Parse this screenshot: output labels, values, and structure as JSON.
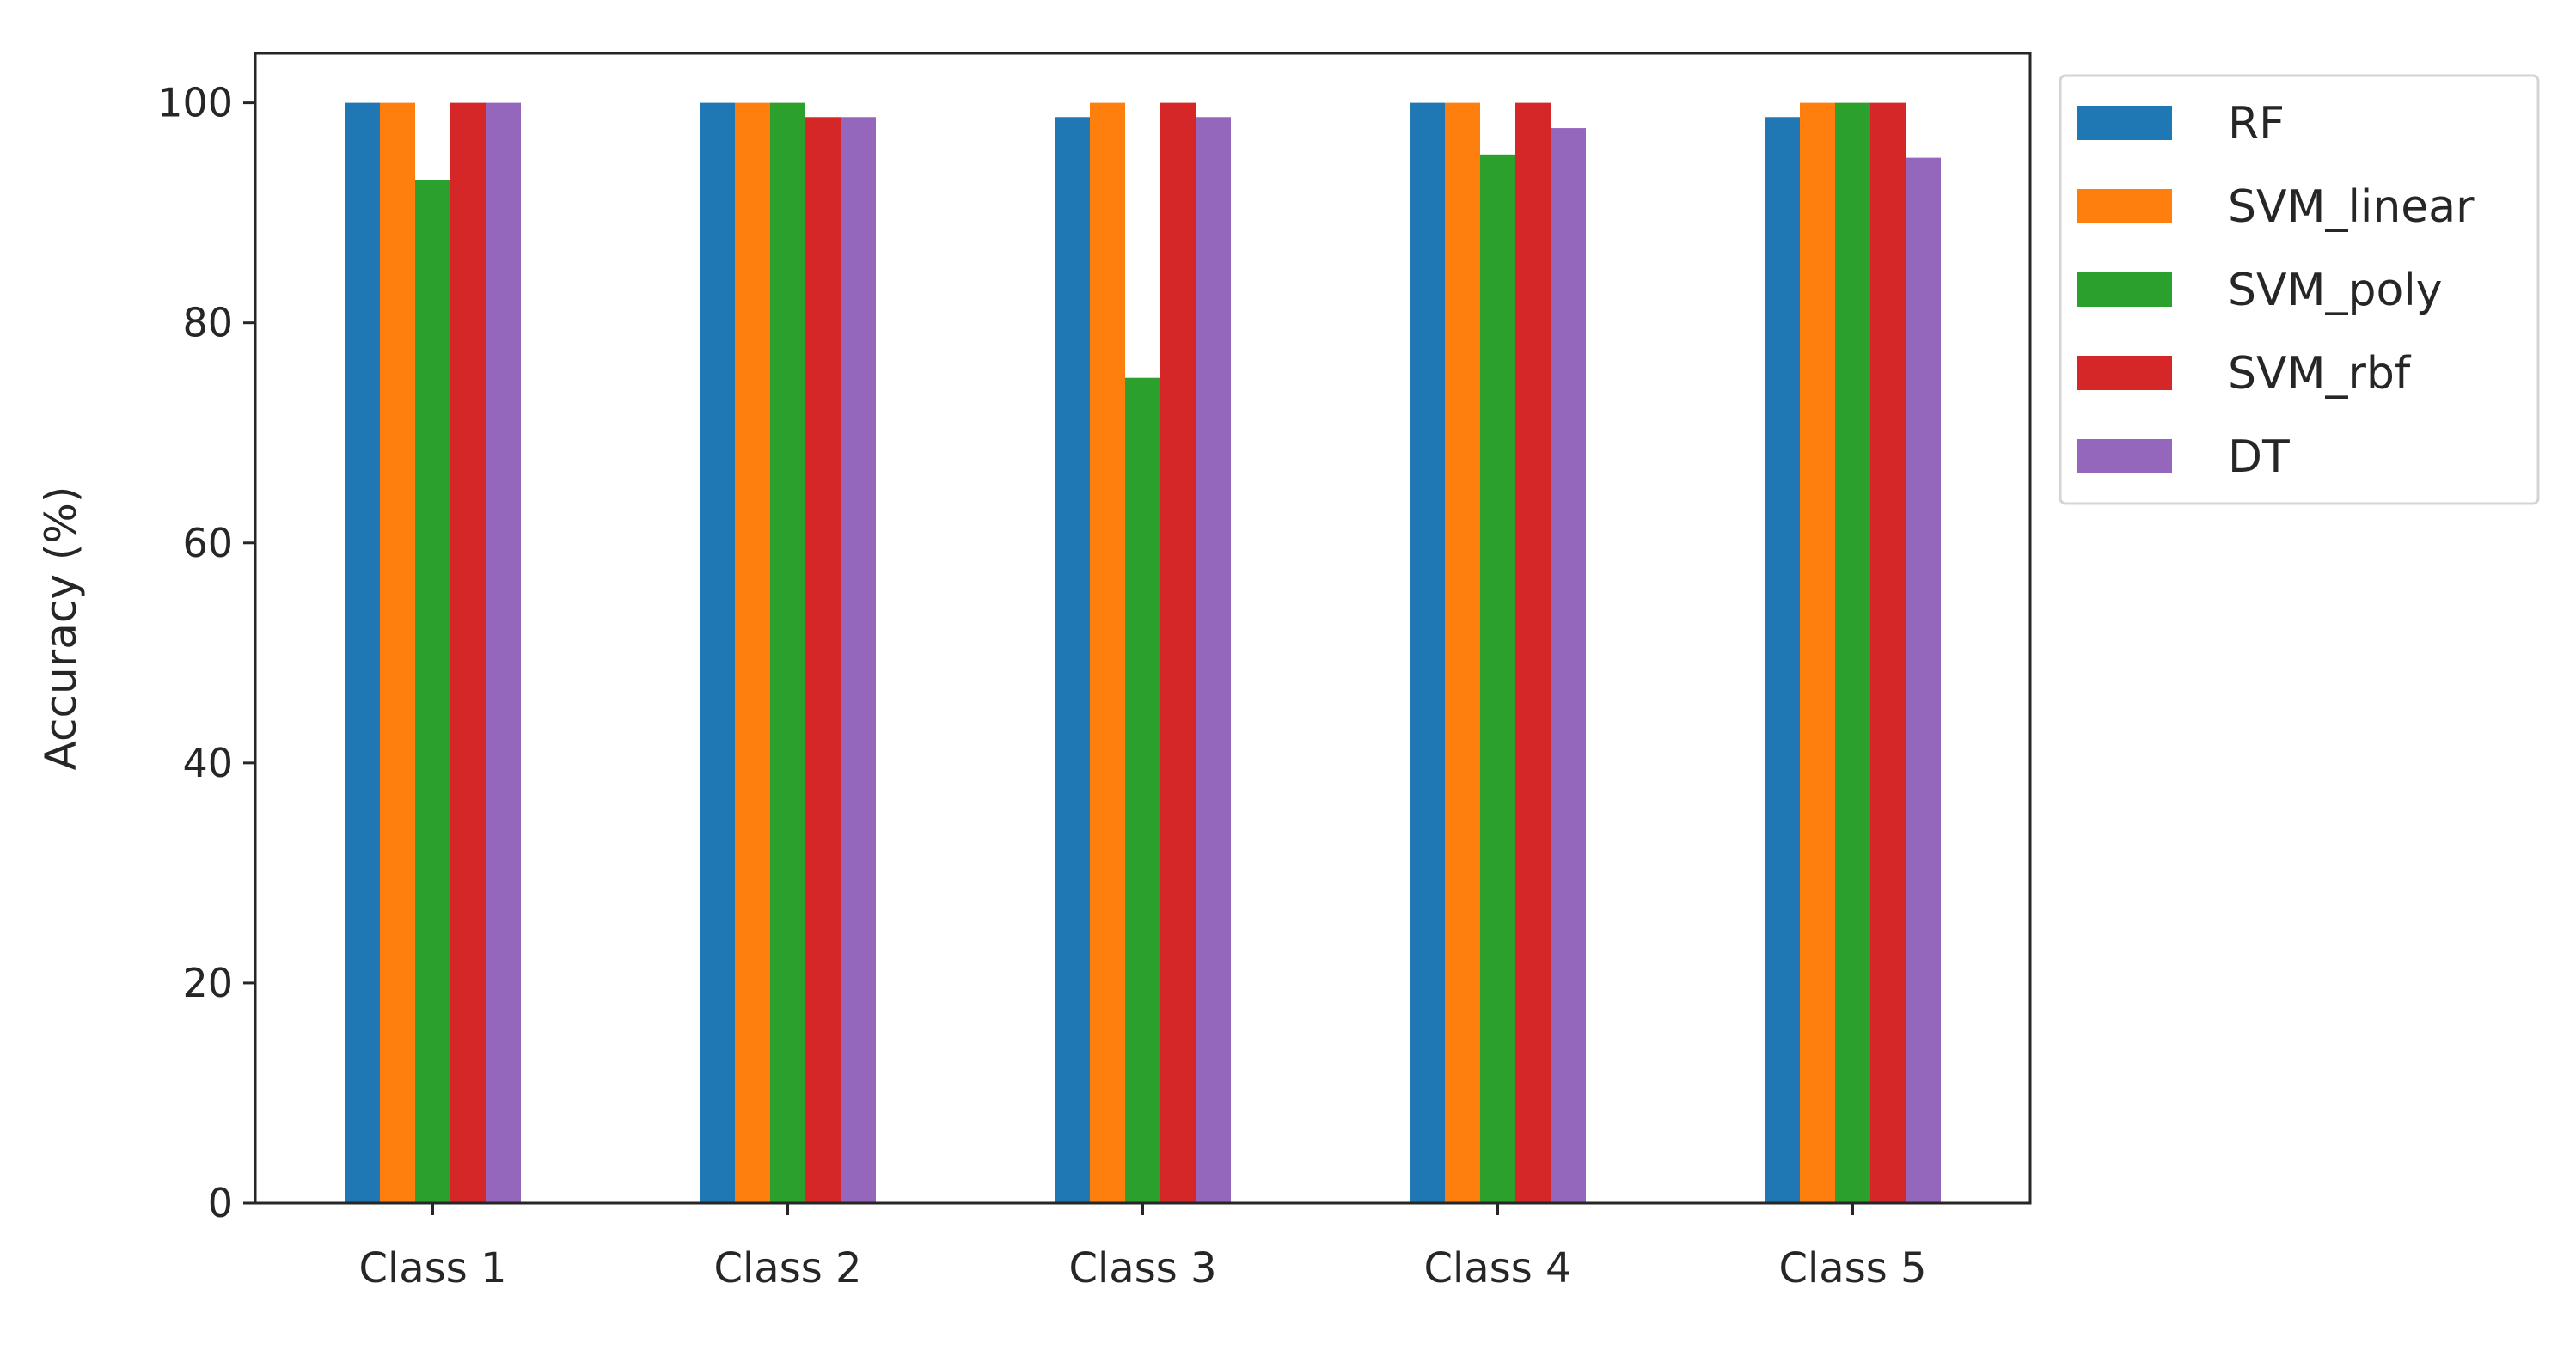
{
  "chart_data": {
    "type": "bar",
    "title": "",
    "xlabel": "",
    "ylabel": "Accuracy (%)",
    "ylim": [
      0,
      104.5
    ],
    "yticks": [
      0,
      20,
      40,
      60,
      80,
      100
    ],
    "ytick_labels": [
      "0",
      "20",
      "40",
      "60",
      "80",
      "100"
    ],
    "categories": [
      "Class 1",
      "Class 2",
      "Class 3",
      "Class 4",
      "Class 5"
    ],
    "grid": false,
    "legend_position": "outside-top-right",
    "series": [
      {
        "name": "RF",
        "color": "#1f77b4",
        "values": [
          100,
          100,
          98.7,
          100,
          98.7
        ]
      },
      {
        "name": "SVM_linear",
        "color": "#ff7f0e",
        "values": [
          100,
          100,
          100,
          100,
          100
        ]
      },
      {
        "name": "SVM_poly",
        "color": "#2ca02c",
        "values": [
          93,
          100,
          75,
          95.3,
          100
        ]
      },
      {
        "name": "SVM_rbf",
        "color": "#d62728",
        "values": [
          100,
          98.7,
          100,
          100,
          100
        ]
      },
      {
        "name": "DT",
        "color": "#9467bd",
        "values": [
          100,
          98.7,
          98.7,
          97.7,
          95
        ]
      }
    ]
  }
}
